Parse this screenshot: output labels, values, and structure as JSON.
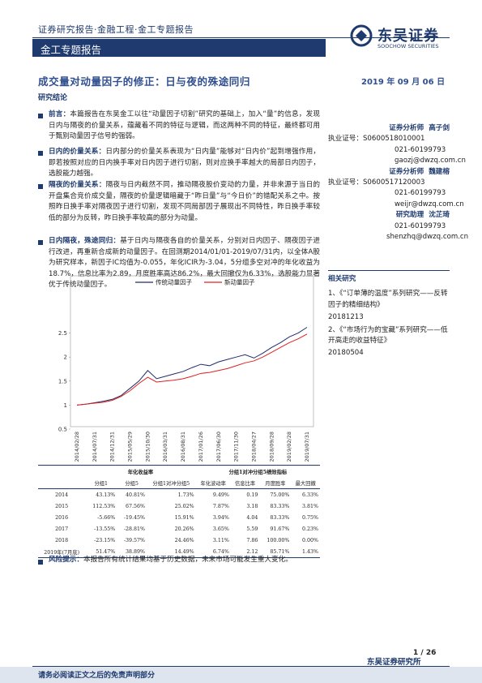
{
  "header": {
    "breadcrumb": "证券研究报告·金融工程·金工专题报告",
    "section": "金工专题报告",
    "logo_cn": "东吴证券",
    "logo_en": "SOOCHOW SECURITIES"
  },
  "title": "成交量对动量因子的修正：日与夜的殊途同归",
  "date": "2019 年 09 月 06 日",
  "summary_heading": "研究结论",
  "paragraphs": [
    {
      "lead": "前言：",
      "text": "本篇报告在东吴金工以往“动量因子切割”研究的基础上，加入“量”的信息，发现日内与隔夜的价量关系，蕴藏着不同的特征与逻辑，而这两种不同的特征，最终都可用于甄别动量因子信号的强弱。"
    },
    {
      "lead": "日内的价量关系：",
      "text": "日内部分的价量关系表现为“日内量”能够对“日内价”起到增强作用，即若按照对应的日内换手率对日内因子进行切割，则对应换手率越大的局部日内因子，选股能力越强。"
    },
    {
      "lead": "隔夜的价量关系：",
      "text": "隔夜与日内截然不同，推动隔夜股价变动的力量，并非来源于当日的开盘集合竞价成交量，隔夜的价量逻辑暗藏于“昨日量”与“今日价”的错配关系之中。按照昨日换手率对隔夜因子进行切割，发现不同局部因子展现出不同特性，昨日换手率较低的部分为反转，昨日换手率较高的部分为动量。"
    },
    {
      "lead": "日内隔夜，殊途同归：",
      "text": "基于日内与隔夜各自的价量关系，分别对日内因子、隔夜因子进行改进，再重新合成新的动量因子。在回测期2014/01/01-2019/07/31内，以全体A股为研究样本，新因子IC均值为-0.055，年化ICIR为-3.04，5分组多空对冲的年化收益为18.7%，信息比率为2.89，月度胜率高达86.2%，最大回撤仅为6.33%，选股能力显著优于传统动量因子。"
    }
  ],
  "chart_data": {
    "type": "line",
    "categories": [
      "2014/02/28",
      null,
      "2014/07/31",
      null,
      "2014/12/31",
      null,
      "2015/05/29",
      null,
      "2015/10/30",
      null,
      "2016/03/31",
      null,
      "2016/08/31",
      null,
      "2017/01/26",
      null,
      "2017/06/30",
      null,
      "2017/11/30",
      null,
      "2018/04/27",
      null,
      "2018/09/28",
      null,
      "2019/02/28",
      null,
      "2019/07/31"
    ],
    "series": [
      {
        "name": "传统动量因子",
        "color": "#1f2d6b",
        "values": [
          1.0,
          1.02,
          1.05,
          1.08,
          1.12,
          1.2,
          1.35,
          1.5,
          1.72,
          1.55,
          1.6,
          1.65,
          1.7,
          1.78,
          1.85,
          1.82,
          1.9,
          1.95,
          2.0,
          2.05,
          1.98,
          2.08,
          2.2,
          2.3,
          2.42,
          2.5,
          2.62
        ]
      },
      {
        "name": "新动量因子",
        "color": "#e02020",
        "values": [
          1.0,
          1.02,
          1.04,
          1.06,
          1.1,
          1.18,
          1.3,
          1.45,
          1.58,
          1.48,
          1.5,
          1.52,
          1.55,
          1.6,
          1.66,
          1.68,
          1.72,
          1.76,
          1.82,
          1.88,
          1.92,
          2.0,
          2.1,
          2.2,
          2.3,
          2.38,
          2.48
        ]
      }
    ],
    "ylim": [
      0.5,
      3
    ],
    "yticks": [
      0.5,
      1,
      1.5,
      2,
      2.5
    ]
  },
  "table": {
    "group_headers": [
      "年化收益率",
      "分组1对冲分组5绩效指标"
    ],
    "headers": [
      "分组1",
      "分组5",
      "分组1对冲分组5",
      "年化波动率",
      "信息比率",
      "月度胜率",
      "最大回撤"
    ],
    "rows": [
      [
        "2014",
        "43.13%",
        "40.81%",
        "1.73%",
        "9.49%",
        "0.19",
        "75.00%",
        "6.33%"
      ],
      [
        "2015",
        "112.53%",
        "67.56%",
        "25.02%",
        "7.87%",
        "3.18",
        "83.33%",
        "3.81%"
      ],
      [
        "2016",
        "-5.66%",
        "-19.45%",
        "15.91%",
        "3.94%",
        "4.04",
        "83.33%",
        "0.75%"
      ],
      [
        "2017",
        "-13.55%",
        "-28.81%",
        "20.26%",
        "3.65%",
        "5.59",
        "91.67%",
        "0.23%"
      ],
      [
        "2018",
        "-23.15%",
        "-39.57%",
        "24.46%",
        "3.11%",
        "7.86",
        "100.00%",
        "0.00%"
      ],
      [
        "2019年(7月底)",
        "51.47%",
        "38.89%",
        "14.49%",
        "6.74%",
        "2.12",
        "85.71%",
        "1.43%"
      ]
    ]
  },
  "risk": {
    "lead": "风险提示：",
    "text": "本报告所有统计结果均基于历史数据，未来市场可能发生重大变化。"
  },
  "analysts": [
    {
      "role": "证券分析师",
      "name": "高子剑",
      "license": "执业证号：S0600518010001",
      "phone": "021-60199793",
      "email": "gaozj@dwzq.com.cn"
    },
    {
      "role": "证券分析师",
      "name": "魏建榕",
      "license": "执业证号：S0600517120003",
      "phone": "021-60199793",
      "email": "weijr@dwzq.com.cn"
    },
    {
      "role": "研究助理",
      "name": "沈芷琦",
      "phone": "021-60199793",
      "email": "shenzhq@dwzq.com.cn"
    }
  ],
  "related": {
    "heading": "相关研究",
    "items": [
      {
        "title": "1、《“订单薄的温度”系列研究——反转因子的精细结构》",
        "date": "20181213"
      },
      {
        "title": "2、《“市场行为的宝藏”系列研究——低开高走的收益特征》",
        "date": "20180504"
      }
    ]
  },
  "footer": {
    "page": "1 / 26",
    "institute": "东吴证券研究所",
    "disclaimer": "请务必阅读正文之后的免责声明部分"
  }
}
